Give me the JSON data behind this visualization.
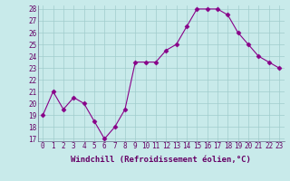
{
  "x": [
    0,
    1,
    2,
    3,
    4,
    5,
    6,
    7,
    8,
    9,
    10,
    11,
    12,
    13,
    14,
    15,
    16,
    17,
    18,
    19,
    20,
    21,
    22,
    23
  ],
  "y": [
    19,
    21,
    19.5,
    20.5,
    20,
    18.5,
    17,
    18,
    19.5,
    23.5,
    23.5,
    23.5,
    24.5,
    25,
    26.5,
    28,
    28,
    28,
    27.5,
    26,
    25,
    24,
    23.5,
    23
  ],
  "ylim_min": 17,
  "ylim_max": 28,
  "yticks": [
    17,
    18,
    19,
    20,
    21,
    22,
    23,
    24,
    25,
    26,
    27,
    28
  ],
  "xticks": [
    0,
    1,
    2,
    3,
    4,
    5,
    6,
    7,
    8,
    9,
    10,
    11,
    12,
    13,
    14,
    15,
    16,
    17,
    18,
    19,
    20,
    21,
    22,
    23
  ],
  "xlabel": "Windchill (Refroidissement éolien,°C)",
  "line_color": "#880088",
  "marker": "D",
  "marker_size": 2.5,
  "bg_color": "#c8eaea",
  "grid_color": "#a0cccc",
  "axis_color": "#666688",
  "tick_color": "#660066",
  "label_color": "#660066",
  "tick_fontsize": 5.5,
  "xlabel_fontsize": 6.5
}
